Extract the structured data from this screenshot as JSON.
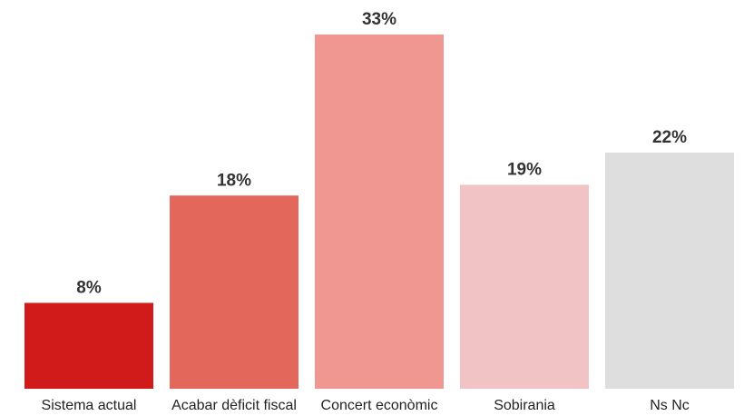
{
  "chart_data": {
    "type": "bar",
    "title": "",
    "xlabel": "",
    "ylabel": "",
    "ylim": [
      0,
      35
    ],
    "grid": false,
    "legend": "none",
    "categories": [
      "Sistema actual",
      "Acabar dèficit fiscal",
      "Concert econòmic",
      "Sobirania",
      "Ns Nc"
    ],
    "values": [
      8,
      18,
      33,
      19,
      22
    ],
    "value_labels": [
      "8%",
      "18%",
      "33%",
      "19%",
      "22%"
    ],
    "colors": [
      "#d11a1a",
      "#e4675c",
      "#f09791",
      "#f2c3c4",
      "#dedede"
    ]
  }
}
